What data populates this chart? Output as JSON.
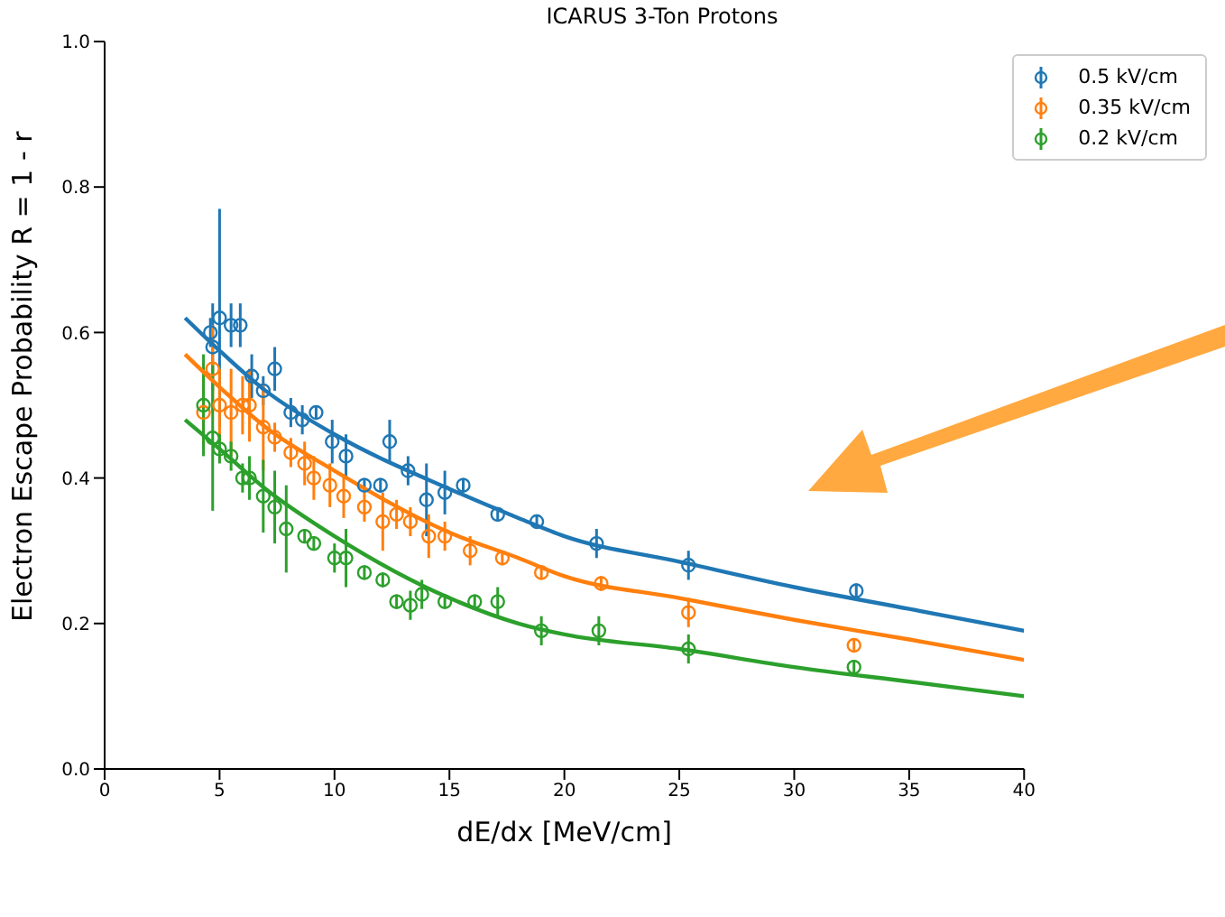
{
  "chart_data": {
    "type": "scatter",
    "title": "ICARUS 3-Ton Protons",
    "xlabel": "dE/dx [MeV/cm]",
    "ylabel": "Electron Escape Probability R = 1 - r",
    "xlim": [
      0,
      40
    ],
    "xticks": [
      0,
      5,
      10,
      15,
      20,
      25,
      30,
      35,
      40
    ],
    "ylim": [
      0,
      1
    ],
    "yticks": [
      {
        "value": 0,
        "label": "0.0"
      },
      0.2,
      0.4,
      0.6,
      0.8,
      {
        "value": 1,
        "label": "1.0"
      }
    ],
    "grid": false,
    "legend": "top right",
    "series": [
      {
        "name": "0.5 kV/cm",
        "color": "#1f77b4",
        "marker": "circle",
        "x": [
          4.6,
          4.7,
          5.0,
          5.5,
          5.9,
          6.4,
          6.9,
          7.4,
          8.1,
          8.6,
          9.2,
          9.9,
          10.5,
          11.3,
          12.0,
          12.4,
          13.2,
          14.0,
          14.8,
          15.6,
          17.1,
          18.8,
          21.4,
          25.4,
          32.7
        ],
        "values": [
          0.6,
          0.58,
          0.62,
          0.61,
          0.61,
          0.54,
          0.52,
          0.55,
          0.49,
          0.48,
          0.49,
          0.45,
          0.43,
          0.39,
          0.39,
          0.45,
          0.41,
          0.37,
          0.38,
          0.39,
          0.35,
          0.34,
          0.31,
          0.28,
          0.245
        ],
        "errors": [
          0.02,
          0.06,
          0.15,
          0.03,
          0.03,
          0.03,
          0.02,
          0.03,
          0.02,
          0.02,
          0.01,
          0.03,
          0.03,
          0.01,
          0.01,
          0.03,
          0.02,
          0.05,
          0.03,
          0.01,
          0.01,
          0.01,
          0.02,
          0.02,
          0.01
        ]
      },
      {
        "name": "0.35 kV/cm",
        "color": "#ff7f0e",
        "marker": "circle",
        "x": [
          4.3,
          4.7,
          5.0,
          5.5,
          6.0,
          6.3,
          6.9,
          7.4,
          8.1,
          8.7,
          9.1,
          9.8,
          10.4,
          11.3,
          12.1,
          12.7,
          13.3,
          14.1,
          14.8,
          15.9,
          17.3,
          19.0,
          21.6,
          25.4,
          32.6
        ],
        "values": [
          0.49,
          0.55,
          0.5,
          0.49,
          0.5,
          0.5,
          0.47,
          0.456,
          0.435,
          0.42,
          0.4,
          0.39,
          0.375,
          0.36,
          0.34,
          0.35,
          0.34,
          0.32,
          0.32,
          0.3,
          0.29,
          0.27,
          0.255,
          0.215,
          0.17
        ],
        "errors": [
          0.05,
          0.06,
          0.05,
          0.06,
          0.04,
          0.05,
          0.06,
          0.02,
          0.02,
          0.03,
          0.03,
          0.03,
          0.03,
          0.02,
          0.04,
          0.02,
          0.02,
          0.03,
          0.02,
          0.02,
          0.01,
          0.01,
          0.01,
          0.02,
          0.01
        ]
      },
      {
        "name": "0.2 kV/cm",
        "color": "#2ca02c",
        "marker": "circle",
        "x": [
          4.3,
          4.7,
          5.0,
          5.5,
          6.0,
          6.3,
          6.9,
          7.4,
          7.9,
          8.7,
          9.1,
          10.0,
          10.5,
          11.3,
          12.1,
          12.7,
          13.3,
          13.8,
          14.8,
          16.1,
          17.1,
          19.0,
          21.5,
          25.4,
          32.6
        ],
        "values": [
          0.5,
          0.455,
          0.44,
          0.43,
          0.4,
          0.4,
          0.375,
          0.36,
          0.33,
          0.32,
          0.31,
          0.29,
          0.29,
          0.27,
          0.26,
          0.23,
          0.225,
          0.24,
          0.23,
          0.23,
          0.23,
          0.19,
          0.19,
          0.165,
          0.14
        ],
        "errors": [
          0.07,
          0.1,
          0.02,
          0.02,
          0.02,
          0.03,
          0.05,
          0.05,
          0.06,
          0.01,
          0.01,
          0.02,
          0.04,
          0.01,
          0.01,
          0.01,
          0.02,
          0.02,
          0.01,
          0.01,
          0.02,
          0.02,
          0.02,
          0.02,
          0.01
        ]
      },
      {
        "type": "line",
        "color": "#1f77b4",
        "x": [
          3.5,
          5,
          7,
          10,
          15,
          18,
          20,
          25,
          30,
          35,
          40
        ],
        "values": [
          0.62,
          0.575,
          0.52,
          0.46,
          0.385,
          0.345,
          0.32,
          0.285,
          0.25,
          0.22,
          0.19
        ]
      },
      {
        "type": "line",
        "color": "#ff7f0e",
        "x": [
          3.5,
          5,
          7,
          10,
          15,
          18,
          20,
          25,
          30,
          35,
          40
        ],
        "values": [
          0.57,
          0.525,
          0.47,
          0.41,
          0.325,
          0.29,
          0.265,
          0.235,
          0.205,
          0.178,
          0.15
        ]
      },
      {
        "type": "line",
        "color": "#2ca02c",
        "x": [
          3.5,
          5,
          7,
          10,
          15,
          18,
          20,
          25,
          30,
          35,
          40
        ],
        "values": [
          0.48,
          0.44,
          0.385,
          0.32,
          0.235,
          0.2,
          0.185,
          0.165,
          0.14,
          0.12,
          0.1
        ]
      }
    ]
  }
}
